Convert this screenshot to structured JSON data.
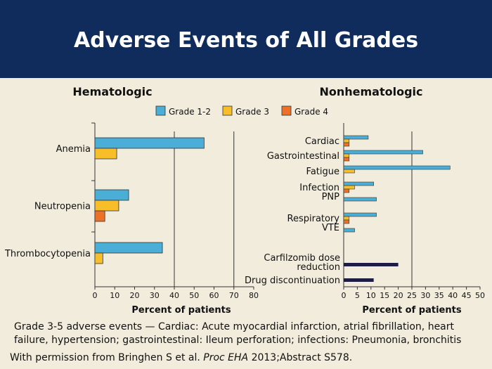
{
  "slide": {
    "title": "Adverse Events of All Grades",
    "footnote": "Grade 3-5 adverse events — Cardiac: Acute myocardial infarction, atrial fibrillation, heart failure, hypertension; gastrointestinal: Ileum perforation; infections: Pneumonia, bronchitis",
    "credit": {
      "prefix": "With permission from Bringhen S et al. ",
      "journal": "Proc EHA",
      "suffix": " 2013;Abstract S578."
    }
  },
  "colors": {
    "header_bg": "#0f2c5c",
    "background": "#f1ecdc",
    "grade_1_2": "#4aaed6",
    "grade_3": "#f7be2a",
    "grade_4": "#ec7028",
    "dark_bar": "#1c1c44"
  },
  "legend": [
    {
      "label": "Grade 1-2",
      "color": "#4aaed6"
    },
    {
      "label": "Grade 3",
      "color": "#f7be2a"
    },
    {
      "label": "Grade 4",
      "color": "#ec7028"
    }
  ],
  "chart_data": [
    {
      "type": "bar",
      "orientation": "horizontal",
      "title": "Hematologic",
      "xlabel": "Percent of patients",
      "xlim": [
        0,
        80
      ],
      "xticks": [
        0,
        10,
        20,
        30,
        40,
        50,
        60,
        70,
        80
      ],
      "reference_lines": [
        40,
        70
      ],
      "categories": [
        "Anemia",
        "Neutropenia",
        "Thrombocytopenia"
      ],
      "series": [
        {
          "name": "Grade 1-2",
          "color": "#4aaed6",
          "values": [
            55,
            17,
            34
          ]
        },
        {
          "name": "Grade 3",
          "color": "#f7be2a",
          "values": [
            11,
            12,
            4
          ]
        },
        {
          "name": "Grade 4",
          "color": "#ec7028",
          "values": [
            0,
            5,
            0
          ]
        }
      ]
    },
    {
      "type": "bar",
      "orientation": "horizontal",
      "title": "Nonhematologic",
      "xlabel": "Percent of patients",
      "xlim": [
        0,
        50
      ],
      "xticks": [
        0,
        5,
        10,
        15,
        20,
        25,
        30,
        35,
        40,
        45,
        50
      ],
      "reference_lines": [
        25
      ],
      "categories": [
        "Cardiac",
        "Gastrointestinal",
        "Fatigue",
        "Infection",
        "PNP",
        "Respiratory",
        "VTE"
      ],
      "series": [
        {
          "name": "Grade 1-2",
          "color": "#4aaed6",
          "values": [
            9,
            29,
            39,
            11,
            12,
            12,
            4
          ]
        },
        {
          "name": "Grade 3",
          "color": "#f7be2a",
          "values": [
            2,
            2,
            4,
            4,
            0,
            2,
            0
          ]
        },
        {
          "name": "Grade 4",
          "color": "#ec7028",
          "values": [
            2,
            2,
            0,
            2,
            0,
            2,
            0
          ]
        }
      ],
      "extra_rows": [
        {
          "label_lines": [
            "Carfilzomib dose",
            "reduction"
          ],
          "value": 20,
          "color": "#1c1c44"
        },
        {
          "label_lines": [
            "Drug discontinuation"
          ],
          "value": 11,
          "color": "#1c1c44"
        }
      ]
    }
  ]
}
